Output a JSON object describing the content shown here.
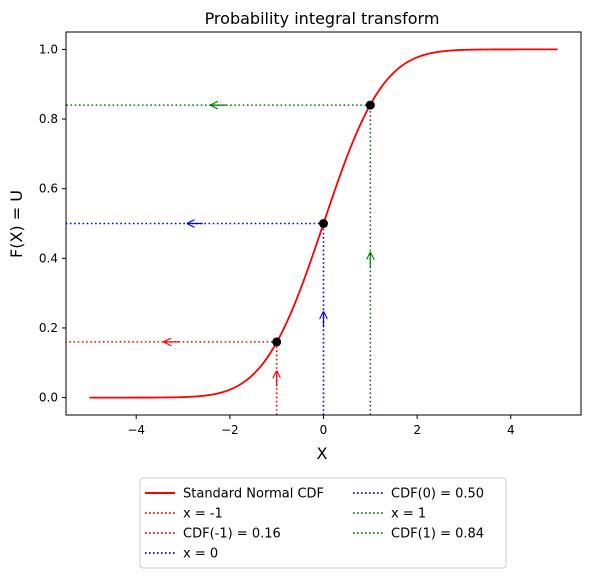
{
  "chart_data": {
    "type": "line",
    "title": "Probability integral transform",
    "xlabel": "X",
    "ylabel": "F(X) = U",
    "xlim": [
      -5.5,
      5.5
    ],
    "ylim": [
      -0.05,
      1.05
    ],
    "xticks": [
      -4,
      -2,
      0,
      2,
      4
    ],
    "xtick_labels": [
      "−4",
      "−2",
      "0",
      "2",
      "4"
    ],
    "yticks": [
      0.0,
      0.2,
      0.4,
      0.6,
      0.8,
      1.0
    ],
    "ytick_labels": [
      "0.0",
      "0.2",
      "0.4",
      "0.6",
      "0.8",
      "1.0"
    ],
    "grid": false,
    "legend_placement": "below",
    "curve": {
      "name": "Standard Normal CDF",
      "color": "#ff0000",
      "x_range": [
        -5,
        5
      ],
      "function": "standard normal CDF"
    },
    "points": [
      {
        "x": -1,
        "y": 0.16,
        "color": "#ff0000",
        "x_label": "x = -1",
        "cdf_label": "CDF(-1) = 0.16"
      },
      {
        "x": 0,
        "y": 0.5,
        "color": "#0000ff",
        "x_label": "x = 0",
        "cdf_label": "CDF(0) = 0.50"
      },
      {
        "x": 1,
        "y": 0.84,
        "color": "#008000",
        "x_label": "x = 1",
        "cdf_label": "CDF(1) = 0.84"
      }
    ],
    "legend": [
      {
        "label": "Standard Normal CDF",
        "color": "#ff0000",
        "style": "solid"
      },
      {
        "label": "x = -1",
        "color": "#ff0000",
        "style": "dotted"
      },
      {
        "label": "CDF(-1) = 0.16",
        "color": "#ff0000",
        "style": "dotted"
      },
      {
        "label": "x = 0",
        "color": "#0000ff",
        "style": "dotted"
      },
      {
        "label": "CDF(0) = 0.50",
        "color": "#0000ff",
        "style": "dotted"
      },
      {
        "label": "x = 1",
        "color": "#008000",
        "style": "dotted"
      },
      {
        "label": "CDF(1) = 0.84",
        "color": "#008000",
        "style": "dotted"
      }
    ]
  }
}
